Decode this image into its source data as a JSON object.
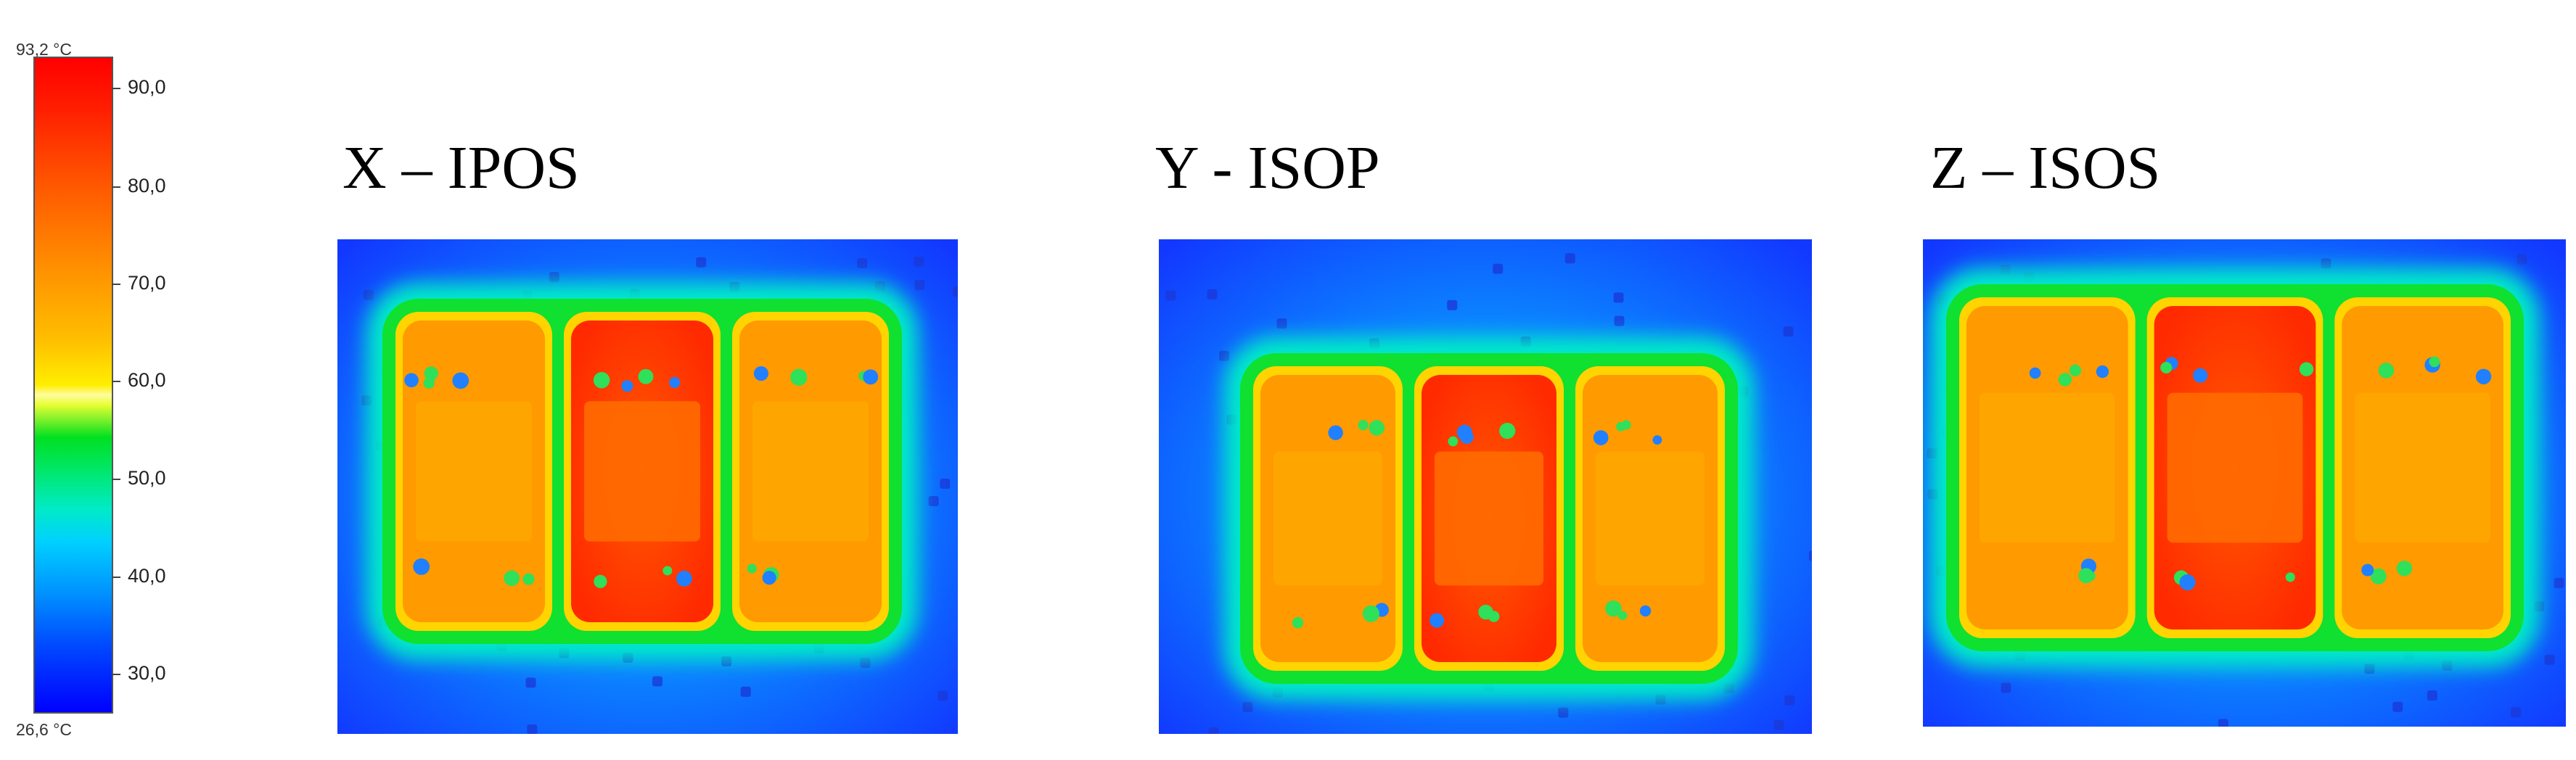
{
  "scale": {
    "max_label": "93,2 °C",
    "min_label": "26,6 °C",
    "max_value": 93.2,
    "min_value": 26.6,
    "ticks": [
      "90,0",
      "80,0",
      "70,0",
      "60,0",
      "50,0",
      "40,0",
      "30,0"
    ],
    "colors": [
      "#0000ff",
      "#00d0ff",
      "#00e020",
      "#ffee00",
      "#ff9400",
      "#ff0000"
    ]
  },
  "panels": [
    {
      "title": "X – IPOS",
      "hotspot": "center-module"
    },
    {
      "title": "Y - ISOP",
      "hotspot": "center-module"
    },
    {
      "title": "Z – ISOS",
      "hotspot": "center-module"
    }
  ]
}
